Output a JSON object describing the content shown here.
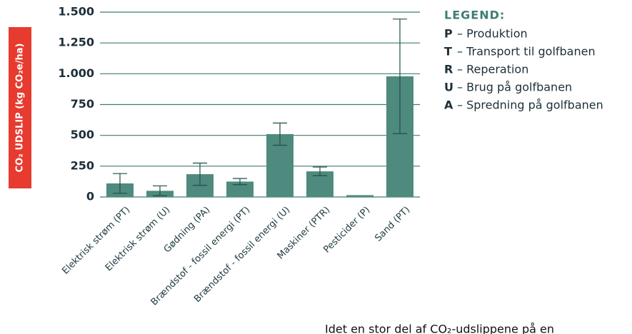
{
  "chart_data": {
    "type": "bar",
    "ylabel": "CO₂ UDSLIP (kg CO₂e/ha)",
    "categories": [
      "Elektrisk strøm (PT)",
      "Elektrisk strøm (U)",
      "Gødning (PA)",
      "Brændstof - fossil energi (PT)",
      "Brændstof - fossil energi (U)",
      "Maskiner (PTR)",
      "Pesticider (P)",
      "Sand (PT)"
    ],
    "values": [
      110,
      50,
      185,
      125,
      510,
      208,
      15,
      979
    ],
    "errors": [
      80,
      40,
      90,
      25,
      90,
      35,
      null,
      465
    ],
    "color": "#4f8a7e",
    "ylim": [
      0,
      1500
    ],
    "yticks": [
      0,
      250,
      500,
      750,
      {
        "value": 1000,
        "label": "1.000"
      },
      {
        "value": 1250,
        "label": "1.250"
      },
      {
        "value": 1500,
        "label": "1.500"
      }
    ],
    "grid": true,
    "legend": {
      "title": "LEGEND:",
      "items": [
        {
          "key": "P",
          "text": "– Produktion"
        },
        {
          "key": "T",
          "text": "– Transport til golfbanen"
        },
        {
          "key": "R",
          "text": "– Reperation"
        },
        {
          "key": "U",
          "text": "– Brug på golfbanen"
        },
        {
          "key": "A",
          "text": "– Spredning på golfbanen"
        }
      ]
    }
  },
  "caption": "Idet en stor del af CO₂-udslippene på en"
}
